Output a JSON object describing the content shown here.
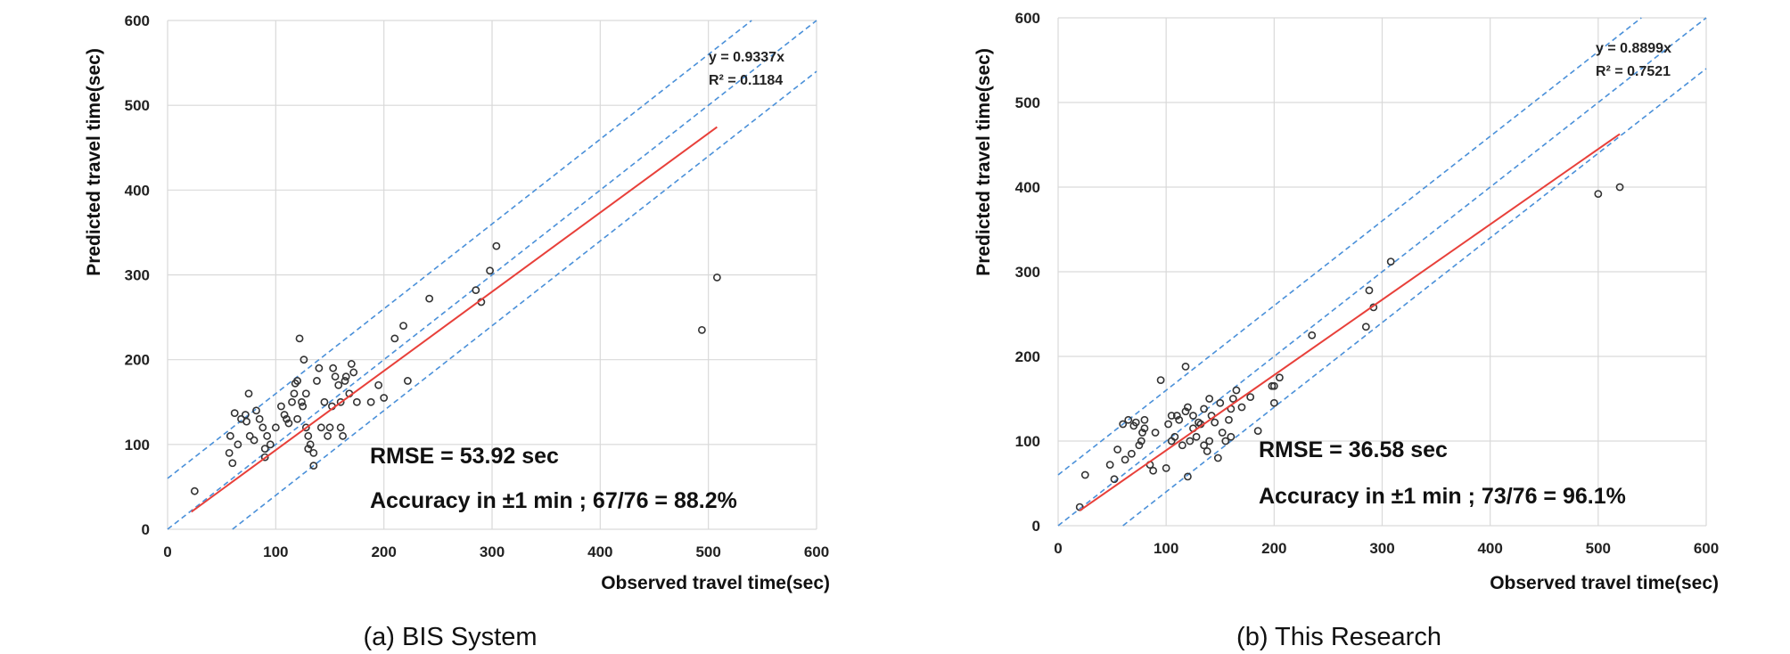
{
  "chart_data": [
    {
      "type": "scatter",
      "title": "",
      "caption": "(a) BIS System",
      "xlabel": "Observed travel time(sec)",
      "ylabel": "Predicted travel time(sec)",
      "xlim": [
        0,
        600
      ],
      "ylim": [
        0,
        600
      ],
      "xticks": [
        "0",
        "100",
        "200",
        "300",
        "400",
        "500",
        "600"
      ],
      "yticks": [
        "0",
        "100",
        "200",
        "300",
        "400",
        "500",
        "600"
      ],
      "grid": true,
      "fit_equation": "y = 0.9337x",
      "r_squared": "R² = 0.1184",
      "rmse_text": "RMSE  =  53.92 sec",
      "accuracy_text": "Accuracy in ±1 min ; 67/76  =  88.2%",
      "fit_line": {
        "slope": 0.9337,
        "x": [
          22,
          508
        ],
        "color": "#e8403a"
      },
      "band_lines": {
        "offsets": [
          -60,
          0,
          60
        ],
        "color": "#4a90d9"
      },
      "marker_color": "#333333",
      "points": [
        [
          25,
          45
        ],
        [
          57,
          90
        ],
        [
          58,
          110
        ],
        [
          60,
          78
        ],
        [
          62,
          137
        ],
        [
          65,
          100
        ],
        [
          68,
          130
        ],
        [
          72,
          135
        ],
        [
          73,
          127
        ],
        [
          75,
          160
        ],
        [
          76,
          110
        ],
        [
          80,
          105
        ],
        [
          82,
          140
        ],
        [
          85,
          130
        ],
        [
          88,
          120
        ],
        [
          90,
          95
        ],
        [
          90,
          85
        ],
        [
          92,
          110
        ],
        [
          95,
          100
        ],
        [
          100,
          120
        ],
        [
          105,
          145
        ],
        [
          108,
          135
        ],
        [
          110,
          130
        ],
        [
          112,
          125
        ],
        [
          115,
          150
        ],
        [
          117,
          160
        ],
        [
          118,
          172
        ],
        [
          120,
          175
        ],
        [
          120,
          130
        ],
        [
          122,
          225
        ],
        [
          124,
          150
        ],
        [
          125,
          145
        ],
        [
          126,
          200
        ],
        [
          128,
          120
        ],
        [
          128,
          160
        ],
        [
          130,
          110
        ],
        [
          130,
          95
        ],
        [
          132,
          100
        ],
        [
          135,
          90
        ],
        [
          135,
          75
        ],
        [
          138,
          175
        ],
        [
          140,
          190
        ],
        [
          142,
          120
        ],
        [
          145,
          150
        ],
        [
          148,
          110
        ],
        [
          150,
          120
        ],
        [
          152,
          145
        ],
        [
          153,
          190
        ],
        [
          155,
          180
        ],
        [
          158,
          170
        ],
        [
          160,
          150
        ],
        [
          160,
          120
        ],
        [
          162,
          110
        ],
        [
          164,
          175
        ],
        [
          165,
          180
        ],
        [
          168,
          160
        ],
        [
          170,
          195
        ],
        [
          172,
          185
        ],
        [
          175,
          150
        ],
        [
          188,
          150
        ],
        [
          195,
          170
        ],
        [
          200,
          155
        ],
        [
          210,
          225
        ],
        [
          218,
          240
        ],
        [
          222,
          175
        ],
        [
          242,
          272
        ],
        [
          285,
          282
        ],
        [
          290,
          268
        ],
        [
          298,
          305
        ],
        [
          304,
          334
        ],
        [
          494,
          235
        ],
        [
          508,
          297
        ]
      ]
    },
    {
      "type": "scatter",
      "title": "",
      "caption": "(b) This Research",
      "xlabel": "Observed travel time(sec)",
      "ylabel": "Predicted travel time(sec)",
      "xlim": [
        0,
        600
      ],
      "ylim": [
        0,
        600
      ],
      "xticks": [
        "0",
        "100",
        "200",
        "300",
        "400",
        "500",
        "600"
      ],
      "yticks": [
        "0",
        "100",
        "200",
        "300",
        "400",
        "500",
        "600"
      ],
      "grid": true,
      "fit_equation": "y = 0.8899x",
      "r_squared": "R² = 0.7521",
      "rmse_text": "RMSE  =  36.58 sec",
      "accuracy_text": "Accuracy in ±1 min ; 73/76  =  96.1%",
      "fit_line": {
        "slope": 0.8899,
        "x": [
          20,
          520
        ],
        "color": "#e8403a"
      },
      "band_lines": {
        "offsets": [
          -60,
          0,
          60
        ],
        "color": "#4a90d9"
      },
      "marker_color": "#333333",
      "points": [
        [
          20,
          22
        ],
        [
          25,
          60
        ],
        [
          48,
          72
        ],
        [
          52,
          55
        ],
        [
          55,
          90
        ],
        [
          60,
          120
        ],
        [
          62,
          78
        ],
        [
          65,
          125
        ],
        [
          68,
          85
        ],
        [
          70,
          118
        ],
        [
          72,
          122
        ],
        [
          75,
          95
        ],
        [
          77,
          100
        ],
        [
          78,
          110
        ],
        [
          80,
          115
        ],
        [
          80,
          125
        ],
        [
          85,
          72
        ],
        [
          88,
          65
        ],
        [
          90,
          110
        ],
        [
          95,
          172
        ],
        [
          100,
          68
        ],
        [
          102,
          120
        ],
        [
          105,
          100
        ],
        [
          105,
          130
        ],
        [
          108,
          105
        ],
        [
          110,
          130
        ],
        [
          112,
          125
        ],
        [
          115,
          95
        ],
        [
          118,
          135
        ],
        [
          118,
          188
        ],
        [
          120,
          140
        ],
        [
          120,
          58
        ],
        [
          122,
          100
        ],
        [
          125,
          130
        ],
        [
          125,
          115
        ],
        [
          128,
          105
        ],
        [
          130,
          122
        ],
        [
          132,
          120
        ],
        [
          135,
          138
        ],
        [
          135,
          95
        ],
        [
          138,
          88
        ],
        [
          140,
          150
        ],
        [
          140,
          100
        ],
        [
          142,
          130
        ],
        [
          145,
          122
        ],
        [
          148,
          80
        ],
        [
          150,
          145
        ],
        [
          152,
          110
        ],
        [
          155,
          100
        ],
        [
          158,
          125
        ],
        [
          160,
          138
        ],
        [
          160,
          105
        ],
        [
          162,
          150
        ],
        [
          165,
          160
        ],
        [
          170,
          140
        ],
        [
          178,
          152
        ],
        [
          185,
          112
        ],
        [
          198,
          165
        ],
        [
          200,
          165
        ],
        [
          200,
          145
        ],
        [
          205,
          175
        ],
        [
          235,
          225
        ],
        [
          285,
          235
        ],
        [
          288,
          278
        ],
        [
          292,
          258
        ],
        [
          308,
          312
        ],
        [
          500,
          392
        ],
        [
          520,
          400
        ]
      ]
    }
  ]
}
